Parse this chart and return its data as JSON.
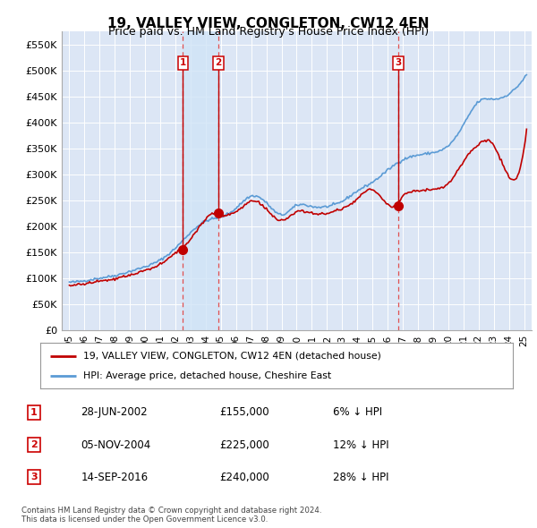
{
  "title": "19, VALLEY VIEW, CONGLETON, CW12 4EN",
  "subtitle": "Price paid vs. HM Land Registry's House Price Index (HPI)",
  "title_fontsize": 11,
  "subtitle_fontsize": 9,
  "background_color": "#ffffff",
  "plot_bg_color": "#dce6f5",
  "grid_color": "#ffffff",
  "ylim": [
    0,
    575000
  ],
  "yticks": [
    0,
    50000,
    100000,
    150000,
    200000,
    250000,
    300000,
    350000,
    400000,
    450000,
    500000,
    550000
  ],
  "ytick_labels": [
    "£0",
    "£50K",
    "£100K",
    "£150K",
    "£200K",
    "£250K",
    "£300K",
    "£350K",
    "£400K",
    "£450K",
    "£500K",
    "£550K"
  ],
  "xlim_start": 1994.5,
  "xlim_end": 2025.5,
  "xtick_years": [
    1995,
    1996,
    1997,
    1998,
    1999,
    2000,
    2001,
    2002,
    2003,
    2004,
    2005,
    2006,
    2007,
    2008,
    2009,
    2010,
    2011,
    2012,
    2013,
    2014,
    2015,
    2016,
    2017,
    2018,
    2019,
    2020,
    2021,
    2022,
    2023,
    2024,
    2025
  ],
  "hpi_color": "#5b9bd5",
  "price_color": "#c00000",
  "shade_color": "#d0e4f7",
  "hpi_linewidth": 1.2,
  "price_linewidth": 1.2,
  "transactions": [
    {
      "label": "1",
      "date_x": 2002.5,
      "price": 155000
    },
    {
      "label": "2",
      "date_x": 2004.83,
      "price": 225000
    },
    {
      "label": "3",
      "date_x": 2016.7,
      "price": 240000
    }
  ],
  "legend_line1": "19, VALLEY VIEW, CONGLETON, CW12 4EN (detached house)",
  "legend_line2": "HPI: Average price, detached house, Cheshire East",
  "table_rows": [
    {
      "num": "1",
      "date": "28-JUN-2002",
      "price": "£155,000",
      "hpi": "6% ↓ HPI"
    },
    {
      "num": "2",
      "date": "05-NOV-2004",
      "price": "£225,000",
      "hpi": "12% ↓ HPI"
    },
    {
      "num": "3",
      "date": "14-SEP-2016",
      "price": "£240,000",
      "hpi": "28% ↓ HPI"
    }
  ],
  "footer": "Contains HM Land Registry data © Crown copyright and database right 2024.\nThis data is licensed under the Open Government Licence v3.0."
}
